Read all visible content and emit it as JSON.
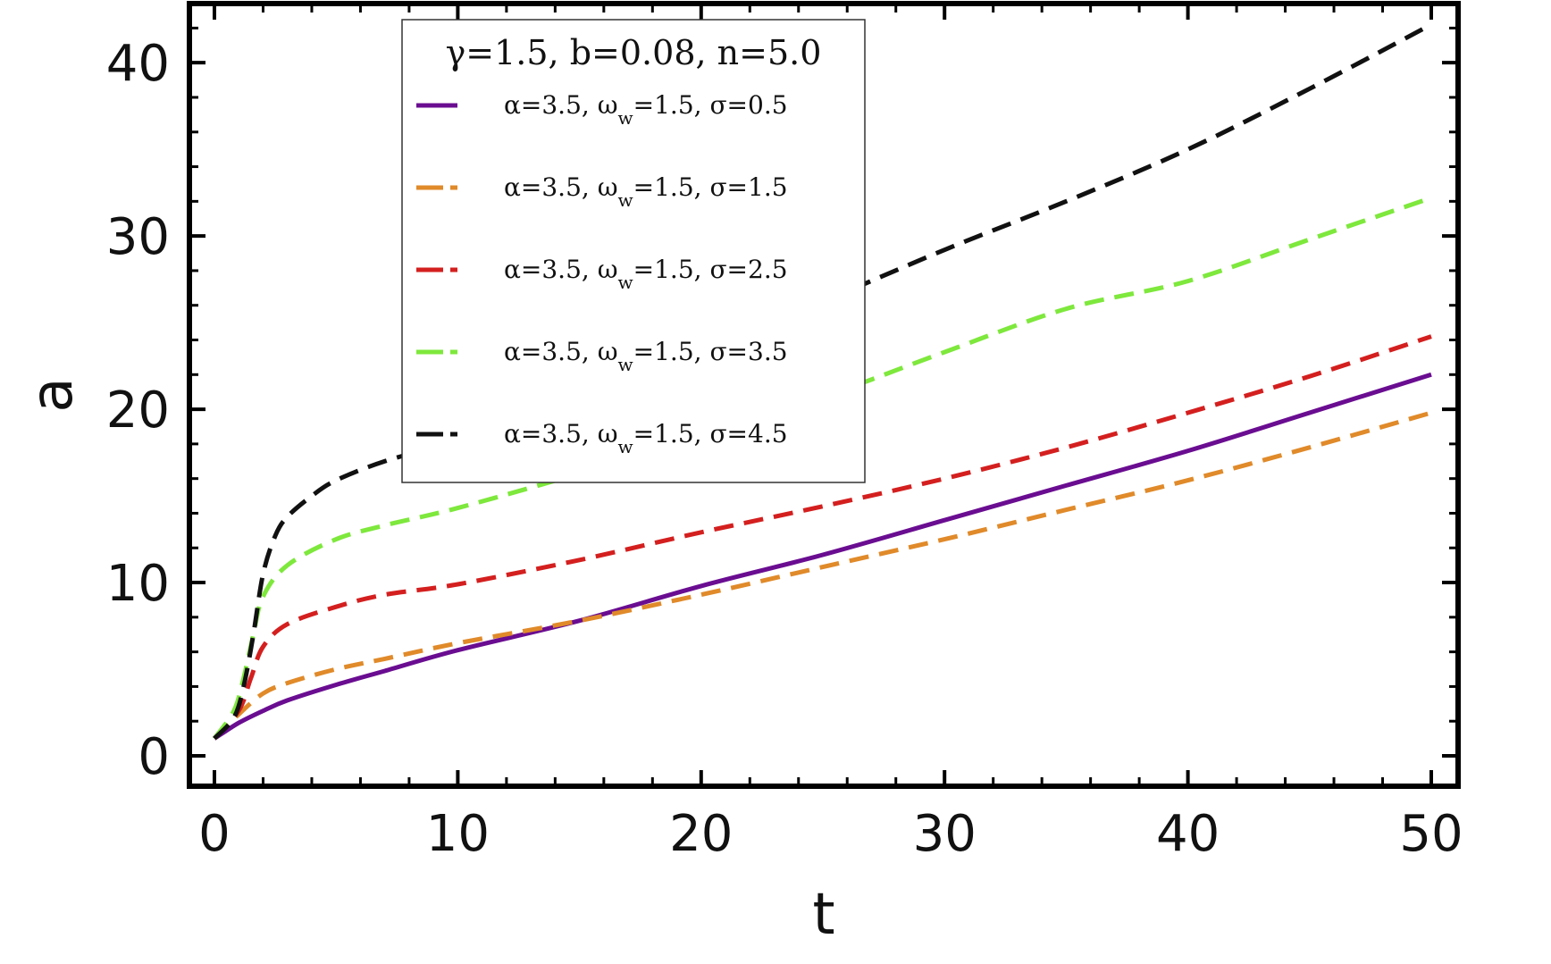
{
  "chart_data": {
    "type": "line",
    "xlabel": "t",
    "ylabel": "a",
    "xlim": [
      0,
      50
    ],
    "ylim": [
      0,
      43
    ],
    "x_ticks": [
      0,
      10,
      20,
      30,
      40,
      50
    ],
    "y_ticks": [
      0,
      10,
      20,
      30,
      40
    ],
    "x_tick_labels": [
      "0",
      "10",
      "20",
      "30",
      "40",
      "50"
    ],
    "y_tick_labels": [
      "0",
      "10",
      "20",
      "30",
      "40"
    ],
    "legend": {
      "title": "γ=1.5, b=0.08, n=5.0",
      "placement": "top-center"
    },
    "series": [
      {
        "name": "α=3.5, ωw=1.5, σ=0.5",
        "color": "#6a0d91",
        "dashed": false,
        "x": [
          0,
          1,
          2,
          3,
          5,
          7,
          10,
          15,
          20,
          25,
          30,
          35,
          40,
          45,
          50
        ],
        "y": [
          1.0,
          1.9,
          2.6,
          3.2,
          4.1,
          4.9,
          6.1,
          7.8,
          9.8,
          11.6,
          13.6,
          15.6,
          17.6,
          19.8,
          22.0
        ]
      },
      {
        "name": "α=3.5, ωw=1.5, σ=1.5",
        "color": "#e08a2a",
        "dashed": true,
        "x": [
          0,
          1,
          2,
          3,
          5,
          7,
          10,
          15,
          20,
          25,
          30,
          35,
          40,
          45,
          50
        ],
        "y": [
          1.0,
          2.4,
          3.6,
          4.2,
          5.0,
          5.6,
          6.5,
          7.8,
          9.3,
          10.9,
          12.5,
          14.2,
          15.9,
          17.8,
          19.8
        ]
      },
      {
        "name": "α=3.5, ωw=1.5, σ=2.5",
        "color": "#d41f1f",
        "dashed": true,
        "x": [
          0,
          1,
          1.5,
          2,
          3,
          5,
          7,
          10,
          15,
          20,
          25,
          30,
          35,
          40,
          45,
          50
        ],
        "y": [
          1.0,
          2.6,
          4.5,
          6.3,
          7.6,
          8.6,
          9.3,
          9.9,
          11.3,
          12.9,
          14.4,
          16.0,
          17.8,
          19.8,
          21.9,
          24.2
        ]
      },
      {
        "name": "α=3.5, ωw=1.5, σ=3.5",
        "color": "#7ee83c",
        "dashed": true,
        "x": [
          0,
          0.8,
          1.2,
          1.6,
          2,
          3,
          5,
          7,
          10,
          15,
          20,
          25,
          30,
          35,
          40,
          45,
          50
        ],
        "y": [
          1.0,
          2.6,
          4.5,
          7.0,
          9.2,
          11.0,
          12.5,
          13.3,
          14.3,
          16.3,
          18.5,
          20.7,
          23.3,
          25.8,
          27.4,
          29.8,
          32.2
        ]
      },
      {
        "name": "α=3.5, ωw=1.5, σ=4.5",
        "color": "#111111",
        "dashed": true,
        "x": [
          0,
          0.8,
          1.2,
          1.6,
          2,
          2.5,
          3,
          4,
          5,
          7,
          10,
          15,
          20,
          25,
          30,
          35,
          40,
          45,
          50
        ],
        "y": [
          1.0,
          2.2,
          4.0,
          7.0,
          10.5,
          12.7,
          13.8,
          15.0,
          15.9,
          17.0,
          18.2,
          20.5,
          23.2,
          26.2,
          29.2,
          32.0,
          35.0,
          38.5,
          42.2
        ]
      }
    ]
  }
}
